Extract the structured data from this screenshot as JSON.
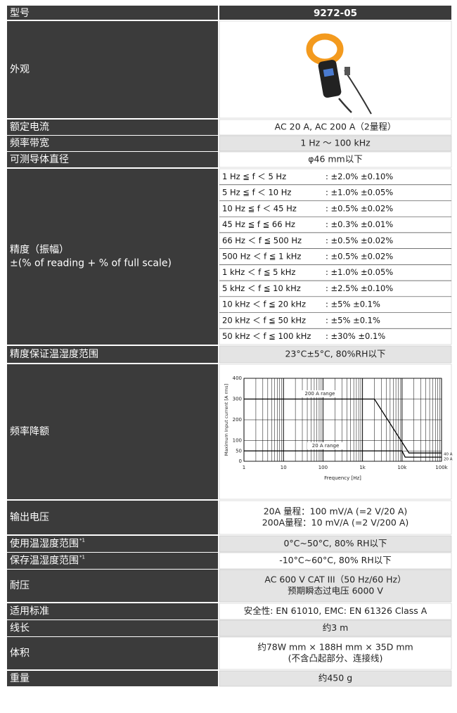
{
  "table": {
    "header": {
      "label": "型号",
      "value": "9272-05"
    },
    "rows": [
      {
        "label": [
          "外观"
        ]
      },
      {
        "label": [
          "额定电流"
        ],
        "value": [
          "AC 20 A, AC 200 A（2量程）"
        ]
      },
      {
        "label": [
          "频率带宽"
        ],
        "value": [
          "1 Hz ～ 100 kHz"
        ]
      },
      {
        "label": [
          "可测导体直径"
        ],
        "value": [
          "φ46 mm以下"
        ]
      },
      {
        "label": [
          "精度（振幅）",
          "±(% of reading + % of full scale)"
        ],
        "accuracy": [
          [
            "1 Hz ≦ f ＜ 5 Hz",
            ": ±2.0% ±0.10%"
          ],
          [
            "5 Hz ≦ f ＜ 10 Hz",
            ": ±1.0% ±0.05%"
          ],
          [
            "10 Hz ≦ f ＜ 45 Hz",
            ": ±0.5% ±0.02%"
          ],
          [
            "45 Hz ≦ f ≦ 66 Hz",
            ": ±0.3% ±0.01%"
          ],
          [
            "66 Hz ＜ f ≦ 500 Hz",
            ": ±0.5% ±0.02%"
          ],
          [
            "500 Hz ＜ f ≦ 1 kHz",
            ": ±0.5% ±0.02%"
          ],
          [
            "1 kHz ＜ f ≦ 5 kHz",
            ": ±1.0% ±0.05%"
          ],
          [
            "5 kHz ＜ f ≦ 10 kHz",
            ": ±2.5% ±0.10%"
          ],
          [
            "10 kHz ＜ f ≦ 20 kHz",
            ": ±5% ±0.1%"
          ],
          [
            "20 kHz ＜ f ≦ 50 kHz",
            ": ±5% ±0.1%"
          ],
          [
            "50 kHz ＜ f ≦ 100 kHz",
            ": ±30% ±0.1%"
          ]
        ]
      },
      {
        "label": [
          "精度保证温湿度范围"
        ],
        "value": [
          "23°C±5°C, 80%RH以下"
        ]
      },
      {
        "label": [
          "频率降额"
        ]
      },
      {
        "label": [
          "输出电压"
        ],
        "value": [
          "20A 量程：100 mV/A (=2 V/20 A)",
          "200A量程：10 mV/A (=2 V/200 A)"
        ]
      },
      {
        "label": [
          "使用温湿度范围"
        ],
        "note": "*1",
        "value": [
          "0°C~50°C, 80% RH以下"
        ]
      },
      {
        "label": [
          "保存温湿度范围"
        ],
        "note": "*1",
        "value": [
          "-10°C~60°C, 80% RH以下"
        ]
      },
      {
        "label": [
          "耐压"
        ],
        "value": [
          "AC 600 V CAT III（50 Hz/60 Hz）",
          "预期瞬态过电压 6000 V"
        ]
      },
      {
        "label": [
          "适用标准"
        ],
        "value": [
          "安全性: EN 61010, EMC: EN 61326 Class A"
        ]
      },
      {
        "label": [
          "线长"
        ],
        "value": [
          "约3 m"
        ]
      },
      {
        "label": [
          "体积"
        ],
        "value": [
          "约78W mm × 188H mm × 35D mm",
          "(不含凸起部分、连接线)"
        ]
      },
      {
        "label": [
          "重量"
        ],
        "value": [
          "约450 g"
        ]
      }
    ]
  },
  "chart_data": {
    "type": "line",
    "x_label": "Frequency [Hz]",
    "y_label": "Maximum Input current [A rms]",
    "log_x": true,
    "minor_grid": true,
    "xlim": [
      1,
      100000
    ],
    "xticks": [
      1,
      10,
      100,
      {
        "value": 1000,
        "label": "1k"
      },
      {
        "value": 10000,
        "label": "10k"
      },
      {
        "value": 100000,
        "label": "100k"
      }
    ],
    "ylim": [
      0,
      400
    ],
    "yticks": [
      0,
      50,
      100,
      200,
      300,
      400
    ],
    "series": [
      {
        "name": "200 A range",
        "color": "#000000",
        "x": [
          1,
          2000,
          15000,
          100000
        ],
        "values": [
          300,
          300,
          40,
          40
        ]
      },
      {
        "name": "20 A range",
        "color": "#000000",
        "x": [
          1,
          10000,
          12000,
          100000
        ],
        "values": [
          50,
          50,
          20,
          20
        ]
      }
    ],
    "annotations": [
      "40 A",
      "20 A"
    ]
  }
}
